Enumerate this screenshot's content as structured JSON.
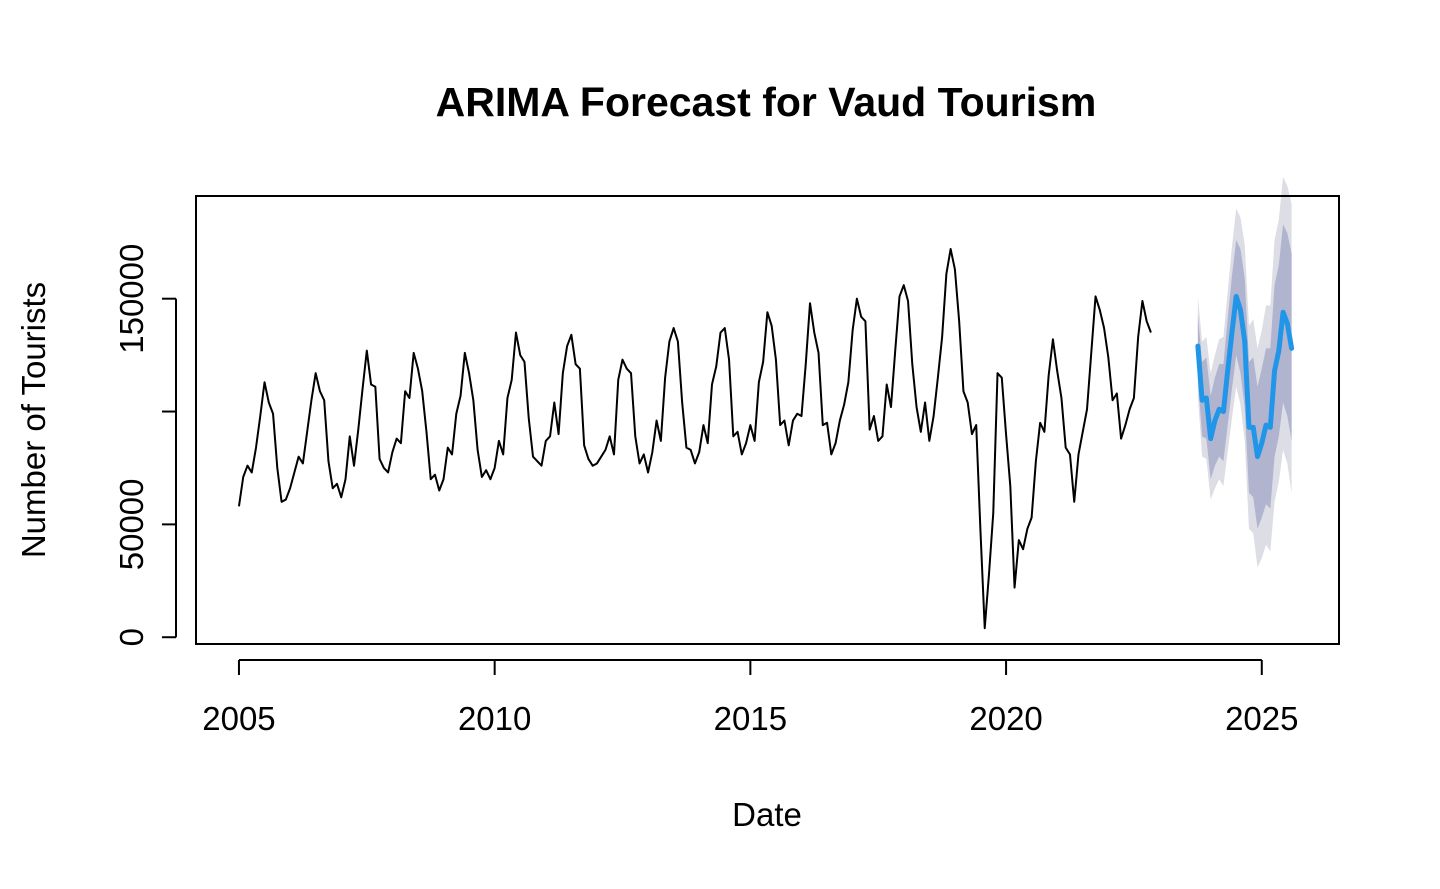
{
  "chart_data": {
    "type": "line",
    "title": "ARIMA Forecast for Vaud Tourism",
    "xlabel": "Date",
    "ylabel": "Number of Tourists",
    "x_ticks": [
      2005,
      2010,
      2015,
      2020,
      2025
    ],
    "y_ticks": [
      0,
      50000,
      100000,
      150000
    ],
    "y_tick_labels": [
      "0",
      "50000",
      "",
      "150000"
    ],
    "xlim": [
      2004.16,
      2026.51
    ],
    "ylim": [
      -3000,
      195500
    ],
    "grid": false,
    "colors": {
      "observed": "#000000",
      "forecast": "#2196e8",
      "band_80": "#b0b4cf",
      "band_95": "#dcdde5"
    },
    "observed": {
      "start": 2005.0,
      "step": 0.08333,
      "values": [
        58000,
        71000,
        76000,
        73000,
        84000,
        98000,
        113000,
        104000,
        99000,
        75000,
        60000,
        61000,
        66000,
        73000,
        80000,
        77000,
        91000,
        105000,
        117000,
        109000,
        105000,
        78000,
        66000,
        68000,
        62000,
        70000,
        89000,
        76000,
        92000,
        110000,
        127000,
        112000,
        111000,
        79000,
        75000,
        73000,
        82000,
        88000,
        86000,
        109000,
        106000,
        126000,
        119000,
        109000,
        91000,
        70000,
        72000,
        65000,
        70000,
        84000,
        81000,
        99000,
        107000,
        126000,
        117000,
        105000,
        83000,
        71000,
        74000,
        70000,
        75000,
        87000,
        81000,
        106000,
        114000,
        135000,
        125000,
        122000,
        97000,
        80000,
        78000,
        76000,
        87000,
        89000,
        104000,
        90000,
        117000,
        129000,
        134000,
        121000,
        119000,
        85000,
        79000,
        76000,
        77000,
        80000,
        83000,
        89000,
        81000,
        114000,
        123000,
        119000,
        117000,
        89000,
        77000,
        81000,
        73000,
        82000,
        96000,
        87000,
        115000,
        131000,
        137000,
        131000,
        104000,
        84000,
        83000,
        77000,
        82000,
        94000,
        86000,
        112000,
        120000,
        135000,
        137000,
        123000,
        89000,
        91000,
        81000,
        86000,
        94000,
        87000,
        113000,
        122000,
        144000,
        138000,
        123000,
        94000,
        96000,
        85000,
        96000,
        99000,
        98000,
        121000,
        148000,
        135000,
        126000,
        94000,
        95000,
        81000,
        86000,
        96000,
        103000,
        113000,
        136000,
        150000,
        142000,
        140000,
        92000,
        98000,
        87000,
        89000,
        112000,
        102000,
        127000,
        151000,
        156000,
        149000,
        121000,
        102000,
        91000,
        104000,
        87000,
        98000,
        115000,
        133000,
        161000,
        172000,
        163000,
        140000,
        109000,
        104000,
        90000,
        94000,
        47000,
        4000,
        28000,
        55000,
        117000,
        115000,
        90000,
        67000,
        22000,
        43000,
        39000,
        48000,
        53000,
        78000,
        95000,
        91000,
        116000,
        132000,
        118000,
        106000,
        84000,
        81000,
        60000,
        81000,
        91000,
        101000,
        126000,
        151000,
        145000,
        137000,
        124000,
        105000,
        108000,
        88000,
        94000,
        101000,
        106000,
        133000,
        149000,
        140000,
        135000
      ]
    },
    "forecast": {
      "start": 2023.75,
      "step": 0.08333,
      "mean": [
        129000,
        105000,
        106000,
        88000,
        96000,
        101000,
        100000,
        118000,
        135000,
        151000,
        145000,
        131000,
        93000,
        93000,
        80000,
        86000,
        94000,
        93000,
        118000,
        127000,
        144000,
        139000,
        128000
      ],
      "lo80": [
        115000,
        89000,
        88000,
        70000,
        76000,
        80000,
        78000,
        94000,
        110000,
        125000,
        117000,
        102000,
        64000,
        62000,
        48000,
        53000,
        59000,
        57000,
        80000,
        89000,
        104000,
        98000,
        87000
      ],
      "hi80": [
        143000,
        122000,
        124000,
        107000,
        115000,
        121000,
        121000,
        141000,
        160000,
        176000,
        172000,
        159000,
        122000,
        124000,
        111000,
        119000,
        128000,
        128000,
        156000,
        165000,
        183000,
        179000,
        170000
      ],
      "lo95": [
        107000,
        80000,
        79000,
        61000,
        66000,
        70000,
        67000,
        82000,
        97000,
        111000,
        103000,
        87000,
        48000,
        46000,
        31000,
        35000,
        41000,
        38000,
        60000,
        69000,
        83000,
        77000,
        64000
      ],
      "hi95": [
        151000,
        131000,
        133000,
        117000,
        125000,
        132000,
        133000,
        153000,
        173000,
        190000,
        186000,
        174000,
        138000,
        141000,
        128000,
        136000,
        147000,
        147000,
        176000,
        185000,
        204000,
        200000,
        192000
      ]
    }
  }
}
